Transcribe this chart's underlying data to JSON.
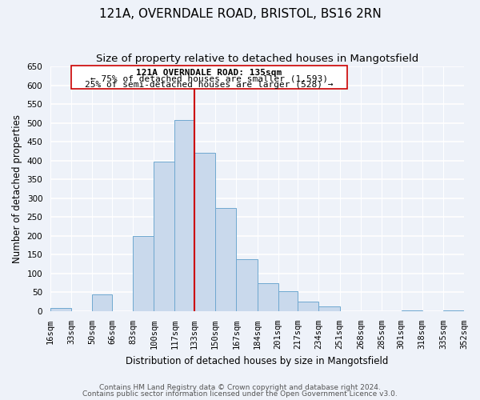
{
  "title": "121A, OVERNDALE ROAD, BRISTOL, BS16 2RN",
  "subtitle": "Size of property relative to detached houses in Mangotsfield",
  "xlabel": "Distribution of detached houses by size in Mangotsfield",
  "ylabel": "Number of detached properties",
  "bar_left_edges": [
    16,
    33,
    50,
    66,
    83,
    100,
    117,
    133,
    150,
    167,
    184,
    201,
    217,
    234,
    251,
    268,
    285,
    301,
    318,
    335
  ],
  "bar_widths": [
    17,
    17,
    16,
    17,
    17,
    17,
    16,
    17,
    17,
    17,
    17,
    16,
    17,
    17,
    17,
    17,
    16,
    17,
    17,
    17
  ],
  "bar_heights": [
    8,
    0,
    45,
    0,
    200,
    397,
    507,
    420,
    275,
    137,
    75,
    52,
    25,
    12,
    0,
    0,
    0,
    2,
    0,
    3
  ],
  "bar_color": "#c9d9ec",
  "bar_edgecolor": "#6fa8d0",
  "vline_x": 133,
  "vline_color": "#cc0000",
  "ylim": [
    0,
    650
  ],
  "yticks": [
    0,
    50,
    100,
    150,
    200,
    250,
    300,
    350,
    400,
    450,
    500,
    550,
    600,
    650
  ],
  "xtick_labels": [
    "16sqm",
    "33sqm",
    "50sqm",
    "66sqm",
    "83sqm",
    "100sqm",
    "117sqm",
    "133sqm",
    "150sqm",
    "167sqm",
    "184sqm",
    "201sqm",
    "217sqm",
    "234sqm",
    "251sqm",
    "268sqm",
    "285sqm",
    "301sqm",
    "318sqm",
    "335sqm",
    "352sqm"
  ],
  "xtick_positions": [
    16,
    33,
    50,
    66,
    83,
    100,
    117,
    133,
    150,
    167,
    184,
    201,
    217,
    234,
    251,
    268,
    285,
    301,
    318,
    335,
    352
  ],
  "annotation_title": "121A OVERNDALE ROAD: 135sqm",
  "annotation_line1": "← 75% of detached houses are smaller (1,593)",
  "annotation_line2": "25% of semi-detached houses are larger (528) →",
  "footer1": "Contains HM Land Registry data © Crown copyright and database right 2024.",
  "footer2": "Contains public sector information licensed under the Open Government Licence v3.0.",
  "background_color": "#eef2f9",
  "grid_color": "#ffffff",
  "title_fontsize": 11,
  "subtitle_fontsize": 9.5,
  "axis_label_fontsize": 8.5,
  "tick_fontsize": 7.5,
  "annotation_fontsize": 8,
  "footer_fontsize": 6.5
}
